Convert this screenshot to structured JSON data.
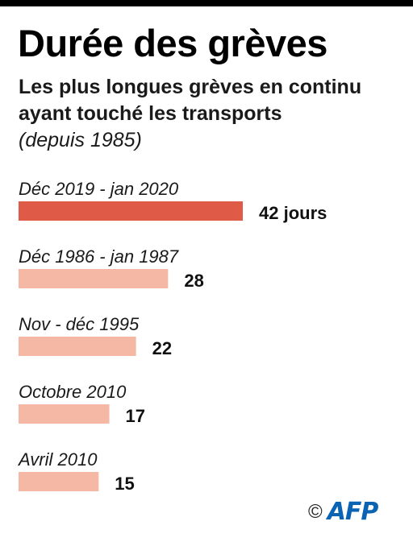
{
  "header": {
    "title": "Durée des grèves",
    "subtitle": "Les plus longues grèves en continu ayant touché les transports",
    "since": "(depuis 1985)"
  },
  "colors": {
    "highlight": "#e05a48",
    "bar": "#f5b8a4"
  },
  "footer": {
    "copyright": "©",
    "logo": "AFP",
    "logo_icon": "afp-logo-icon"
  },
  "chart_data": {
    "type": "bar",
    "orientation": "horizontal",
    "categories": [
      "Déc 2019 - jan 2020",
      "Déc 1986 - jan 1987",
      "Nov - déc 1995",
      "Octobre 2010",
      "Avril 2010"
    ],
    "values": [
      42,
      28,
      22,
      17,
      15
    ],
    "value_labels": [
      "42 jours",
      "28",
      "22",
      "17",
      "15"
    ],
    "highlight_index": 0
  }
}
